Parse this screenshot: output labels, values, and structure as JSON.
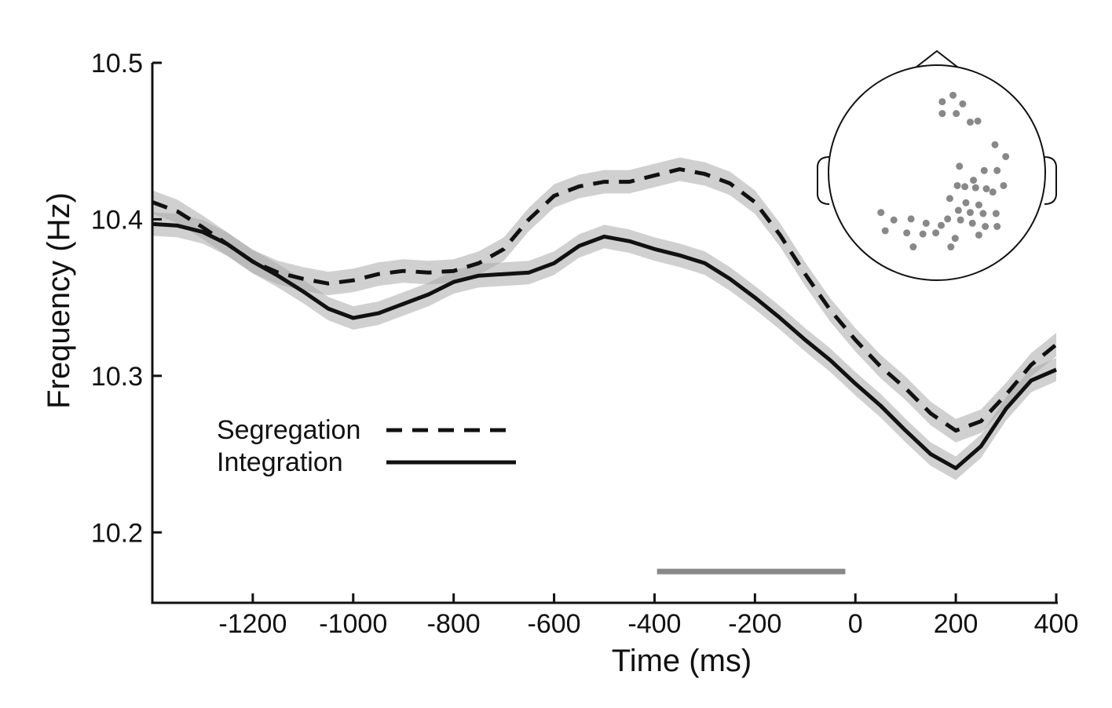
{
  "chart_data": {
    "type": "line",
    "xlabel": "Time (ms)",
    "ylabel": "Frequency (Hz)",
    "xlim": [
      -1400,
      400
    ],
    "ylim": [
      10.155,
      10.5
    ],
    "x_ticks": [
      -1200,
      -1000,
      -800,
      -600,
      -400,
      -200,
      0,
      200,
      400
    ],
    "y_ticks": [
      10.2,
      10.3,
      10.4,
      10.5
    ],
    "x_tick_labels": [
      "-1200",
      "-1000",
      "-800",
      "-600",
      "-400",
      "-200",
      "0",
      "200",
      "400"
    ],
    "y_tick_labels": [
      "10.2",
      "10.3",
      "10.4",
      "10.5"
    ],
    "legend": {
      "placement": "lower-left",
      "entries": [
        {
          "label": "Segregation",
          "style": "dashed"
        },
        {
          "label": "Integration",
          "style": "solid"
        }
      ]
    },
    "grid": false,
    "series": [
      {
        "name": "Segregation",
        "style": "dashed",
        "color": "#111111",
        "band_color": "#aaaaaa",
        "band_halfwidth": 0.0075,
        "x": [
          -1400,
          -1350,
          -1300,
          -1250,
          -1200,
          -1150,
          -1100,
          -1050,
          -1000,
          -950,
          -900,
          -850,
          -800,
          -750,
          -700,
          -650,
          -600,
          -550,
          -500,
          -450,
          -400,
          -350,
          -300,
          -250,
          -200,
          -150,
          -100,
          -50,
          0,
          50,
          100,
          150,
          200,
          250,
          300,
          350,
          400
        ],
        "values": [
          10.411,
          10.405,
          10.395,
          10.384,
          10.373,
          10.366,
          10.362,
          10.359,
          10.361,
          10.365,
          10.367,
          10.366,
          10.367,
          10.372,
          10.381,
          10.4,
          10.415,
          10.421,
          10.424,
          10.424,
          10.428,
          10.432,
          10.429,
          10.423,
          10.411,
          10.39,
          10.365,
          10.342,
          10.323,
          10.306,
          10.292,
          10.276,
          10.265,
          10.271,
          10.288,
          10.307,
          10.32
        ]
      },
      {
        "name": "Integration",
        "style": "solid",
        "color": "#111111",
        "band_color": "#aaaaaa",
        "band_halfwidth": 0.0075,
        "x": [
          -1400,
          -1350,
          -1300,
          -1250,
          -1200,
          -1150,
          -1100,
          -1050,
          -1000,
          -950,
          -900,
          -850,
          -800,
          -750,
          -700,
          -650,
          -600,
          -550,
          -500,
          -450,
          -400,
          -350,
          -300,
          -250,
          -200,
          -150,
          -100,
          -50,
          0,
          50,
          100,
          150,
          200,
          250,
          300,
          350,
          400
        ],
        "values": [
          10.397,
          10.396,
          10.392,
          10.384,
          10.373,
          10.364,
          10.354,
          10.343,
          10.337,
          10.34,
          10.346,
          10.352,
          10.36,
          10.364,
          10.365,
          10.366,
          10.372,
          10.383,
          10.389,
          10.386,
          10.381,
          10.377,
          10.372,
          10.362,
          10.35,
          10.337,
          10.323,
          10.31,
          10.295,
          10.281,
          10.265,
          10.25,
          10.241,
          10.255,
          10.279,
          10.297,
          10.304
        ]
      }
    ],
    "significance_bar": {
      "x_start": -395,
      "x_end": -20,
      "y": 10.175,
      "color": "#888888"
    },
    "inset": {
      "description_type": "topographic head map",
      "electrode_color": "#888888",
      "electrodes": [
        [
          0.05,
          -0.66
        ],
        [
          0.15,
          -0.72
        ],
        [
          0.24,
          -0.64
        ],
        [
          0.05,
          -0.55
        ],
        [
          0.18,
          -0.55
        ],
        [
          0.31,
          -0.47
        ],
        [
          0.38,
          -0.48
        ],
        [
          0.54,
          -0.26
        ],
        [
          0.64,
          -0.15
        ],
        [
          0.21,
          -0.06
        ],
        [
          0.44,
          -0.02
        ],
        [
          0.56,
          -0.02
        ],
        [
          0.34,
          0.07
        ],
        [
          0.19,
          0.12
        ],
        [
          0.26,
          0.13
        ],
        [
          0.36,
          0.14
        ],
        [
          0.46,
          0.15
        ],
        [
          0.52,
          0.18
        ],
        [
          0.62,
          0.12
        ],
        [
          0.12,
          0.24
        ],
        [
          0.27,
          0.28
        ],
        [
          0.39,
          0.3
        ],
        [
          0.2,
          0.35
        ],
        [
          0.31,
          0.37
        ],
        [
          0.43,
          0.38
        ],
        [
          0.55,
          0.38
        ],
        [
          0.1,
          0.43
        ],
        [
          0.22,
          0.44
        ],
        [
          0.33,
          0.47
        ],
        [
          0.45,
          0.5
        ],
        [
          0.56,
          0.5
        ],
        [
          -0.52,
          0.37
        ],
        [
          -0.4,
          0.44
        ],
        [
          -0.24,
          0.43
        ],
        [
          -0.1,
          0.47
        ],
        [
          0.04,
          0.49
        ],
        [
          -0.48,
          0.54
        ],
        [
          -0.28,
          0.56
        ],
        [
          -0.13,
          0.57
        ],
        [
          -0.01,
          0.56
        ],
        [
          0.17,
          0.61
        ],
        [
          0.39,
          0.58
        ],
        [
          -0.22,
          0.69
        ],
        [
          0.13,
          0.69
        ]
      ]
    }
  }
}
